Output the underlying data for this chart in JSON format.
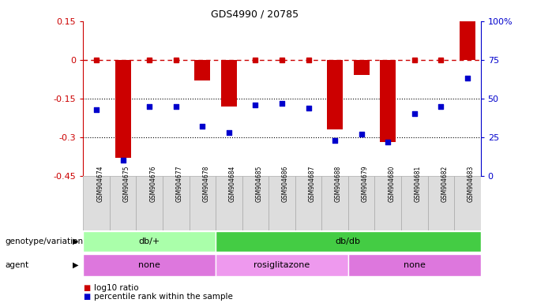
{
  "title": "GDS4990 / 20785",
  "samples": [
    "GSM904674",
    "GSM904675",
    "GSM904676",
    "GSM904677",
    "GSM904678",
    "GSM904684",
    "GSM904685",
    "GSM904686",
    "GSM904687",
    "GSM904688",
    "GSM904679",
    "GSM904680",
    "GSM904681",
    "GSM904682",
    "GSM904683"
  ],
  "log10_ratio": [
    0.0,
    -0.38,
    0.0,
    0.0,
    -0.08,
    -0.18,
    0.0,
    0.0,
    0.0,
    -0.27,
    -0.06,
    -0.32,
    0.0,
    0.0,
    0.15
  ],
  "percentile": [
    43,
    10,
    45,
    45,
    32,
    28,
    46,
    47,
    44,
    23,
    27,
    22,
    40,
    45,
    63
  ],
  "ylim_left": [
    -0.45,
    0.15
  ],
  "ylim_right": [
    0,
    100
  ],
  "yticks_left": [
    0.15,
    0.0,
    -0.15,
    -0.3,
    -0.45
  ],
  "yticks_left_labels": [
    "0.15",
    "0",
    "-0.15",
    "-0.3",
    "-0.45"
  ],
  "yticks_right": [
    100,
    75,
    50,
    25,
    0
  ],
  "yticks_right_labels": [
    "100%",
    "75",
    "50",
    "25",
    "0"
  ],
  "hlines": [
    -0.15,
    -0.3
  ],
  "bar_color": "#cc0000",
  "scatter_color": "#0000cc",
  "dashed_line_color": "#cc0000",
  "genotype_groups": [
    {
      "label": "db/+",
      "start": 0,
      "end": 5,
      "color": "#aaffaa"
    },
    {
      "label": "db/db",
      "start": 5,
      "end": 15,
      "color": "#44cc44"
    }
  ],
  "agent_groups": [
    {
      "label": "none",
      "start": 0,
      "end": 5,
      "color": "#dd77dd"
    },
    {
      "label": "rosiglitazone",
      "start": 5,
      "end": 10,
      "color": "#ee99ee"
    },
    {
      "label": "none",
      "start": 10,
      "end": 15,
      "color": "#dd77dd"
    }
  ],
  "legend_log10": "log10 ratio",
  "legend_percentile": "percentile rank within the sample",
  "bar_width": 0.6,
  "genotype_label": "genotype/variation",
  "agent_label": "agent",
  "sample_box_color": "#dddddd",
  "sample_box_edge": "#aaaaaa"
}
